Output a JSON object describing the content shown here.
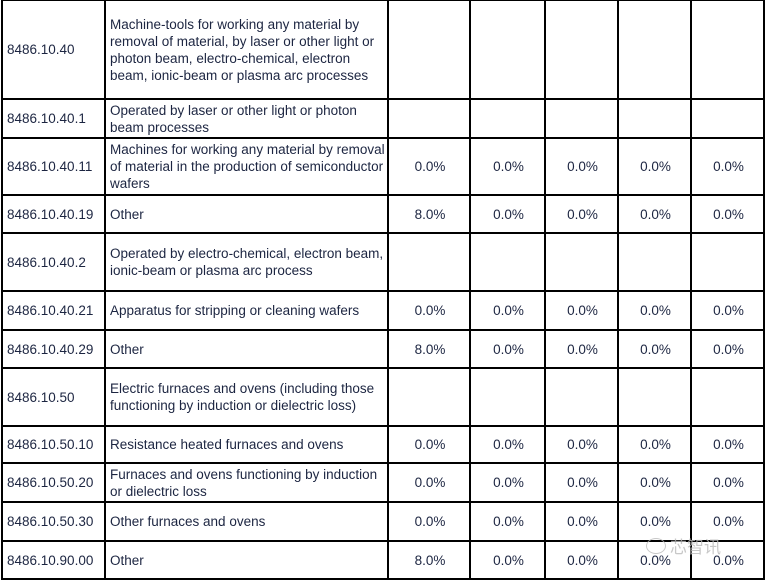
{
  "rows": [
    {
      "code": "8486.10.40",
      "desc": "Machine-tools for working any material by removal of material, by laser or other light or photon beam, electro-chemical, electron beam, ionic-beam or plasma arc processes",
      "rates": [
        "",
        "",
        "",
        "",
        ""
      ]
    },
    {
      "code": "8486.10.40.1",
      "desc": "Operated by laser or other light or photon beam processes",
      "rates": [
        "",
        "",
        "",
        "",
        ""
      ]
    },
    {
      "code": "8486.10.40.11",
      "desc": "Machines for working any material by removal of material in the production of semiconductor wafers",
      "rates": [
        "0.0%",
        "0.0%",
        "0.0%",
        "0.0%",
        "0.0%"
      ]
    },
    {
      "code": "8486.10.40.19",
      "desc": "Other",
      "rates": [
        "8.0%",
        "0.0%",
        "0.0%",
        "0.0%",
        "0.0%"
      ]
    },
    {
      "code": "8486.10.40.2",
      "desc": "Operated by electro-chemical, electron beam, ionic-beam or plasma arc process",
      "rates": [
        "",
        "",
        "",
        "",
        ""
      ]
    },
    {
      "code": "8486.10.40.21",
      "desc": "Apparatus for stripping or cleaning wafers",
      "rates": [
        "0.0%",
        "0.0%",
        "0.0%",
        "0.0%",
        "0.0%"
      ]
    },
    {
      "code": "8486.10.40.29",
      "desc": "Other",
      "rates": [
        "8.0%",
        "0.0%",
        "0.0%",
        "0.0%",
        "0.0%"
      ]
    },
    {
      "code": "8486.10.50",
      "desc": "Electric furnaces and ovens (including those functioning by induction or dielectric loss)",
      "rates": [
        "",
        "",
        "",
        "",
        ""
      ]
    },
    {
      "code": "8486.10.50.10",
      "desc": "Resistance heated furnaces and ovens",
      "rates": [
        "0.0%",
        "0.0%",
        "0.0%",
        "0.0%",
        "0.0%"
      ]
    },
    {
      "code": "8486.10.50.20",
      "desc": "Furnaces and ovens functioning by induction or dielectric loss",
      "rates": [
        "0.0%",
        "0.0%",
        "0.0%",
        "0.0%",
        "0.0%"
      ]
    },
    {
      "code": "8486.10.50.30",
      "desc": "Other furnaces and ovens",
      "rates": [
        "0.0%",
        "0.0%",
        "0.0%",
        "0.0%",
        "0.0%"
      ]
    },
    {
      "code": "8486.10.90.00",
      "desc": "Other",
      "rates": [
        "8.0%",
        "0.0%",
        "0.0%",
        "0.0%",
        "0.0%"
      ]
    }
  ],
  "watermark": "芯智讯"
}
